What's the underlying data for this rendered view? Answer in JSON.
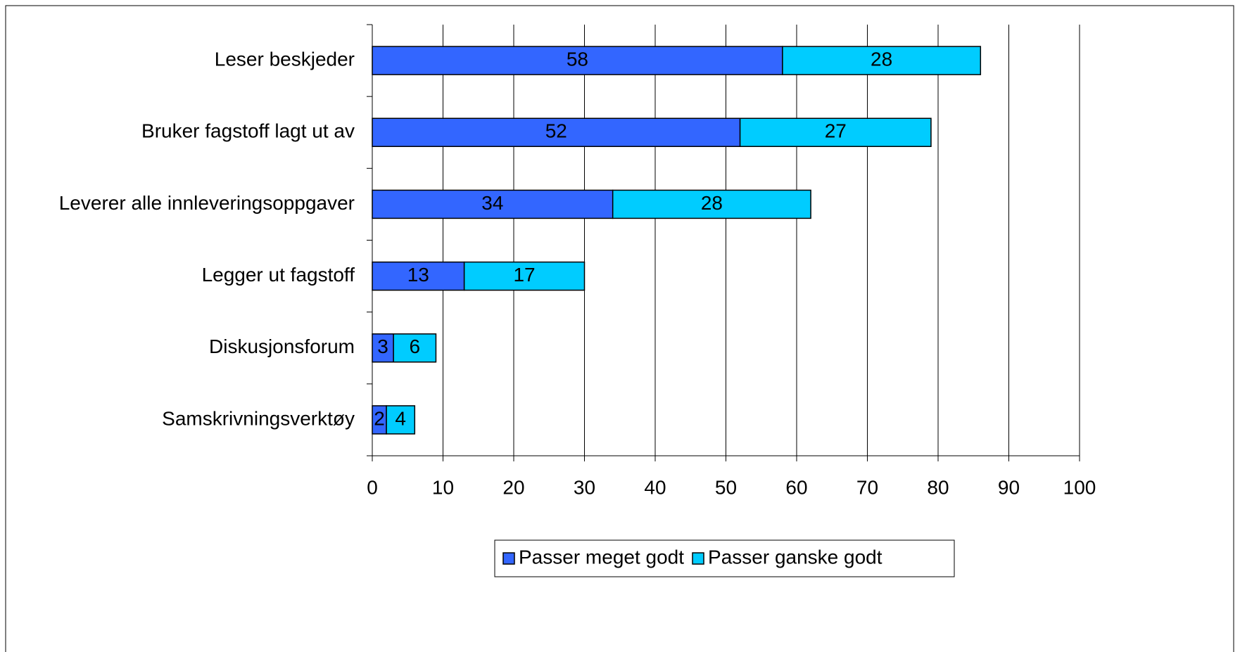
{
  "chart_data": {
    "type": "stacked-barh",
    "categories": [
      "Leser beskjeder",
      "Bruker fagstoff lagt ut av ",
      "Leverer alle innleveringsoppgaver",
      "Legger ut fagstoff",
      "Diskusjonsforum",
      "Samskrivningsverktøy"
    ],
    "series": [
      {
        "name": "Passer meget godt",
        "color": "#3366ff",
        "values": [
          58,
          52,
          34,
          13,
          3,
          2
        ]
      },
      {
        "name": "Passer ganske godt",
        "color": "#00ccff",
        "values": [
          28,
          27,
          28,
          17,
          6,
          4
        ]
      }
    ],
    "xlim": [
      0,
      100
    ],
    "xticks": [
      0,
      10,
      20,
      30,
      40,
      50,
      60,
      70,
      80,
      90,
      100
    ],
    "grid": true,
    "legend": "bottom",
    "data_labels": true
  }
}
